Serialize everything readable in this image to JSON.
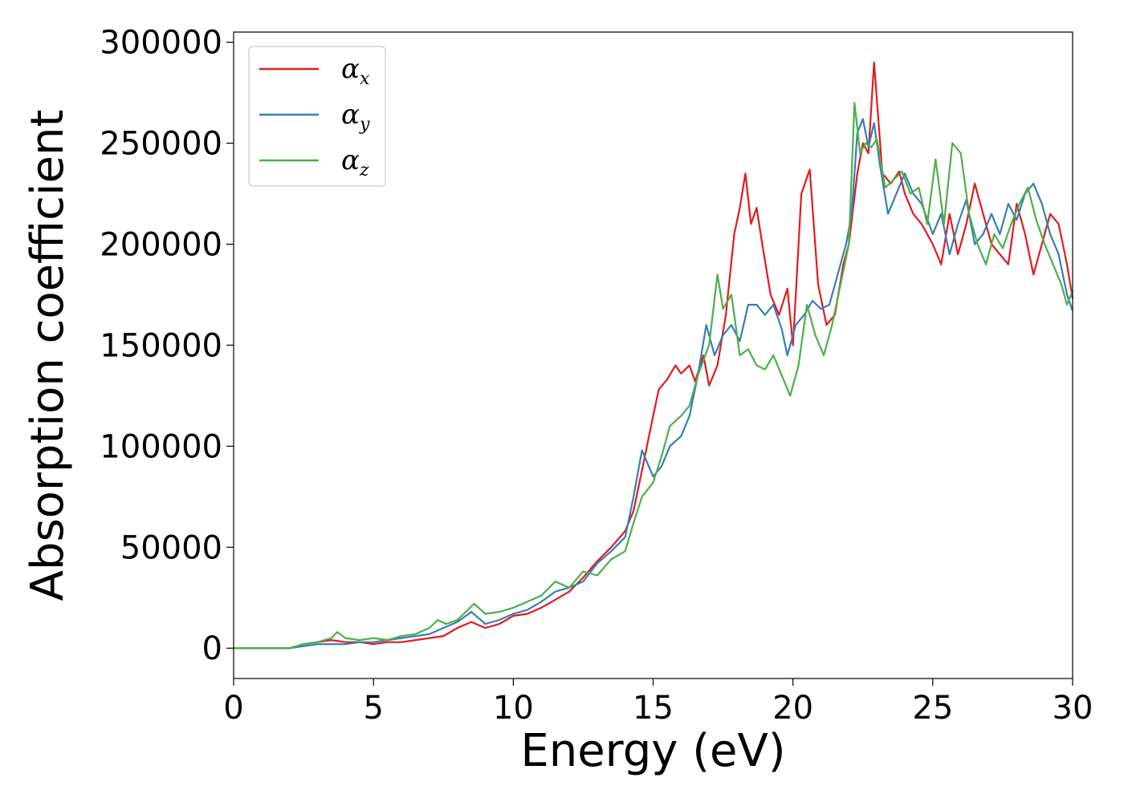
{
  "chart_data": {
    "type": "line",
    "title": "",
    "xlabel": "Energy (eV)",
    "ylabel": "Absorption coefficient",
    "xlim": [
      0,
      30
    ],
    "ylim": [
      -15000,
      305000
    ],
    "xticks": [
      0,
      5,
      10,
      15,
      20,
      25,
      30
    ],
    "xtick_labels": [
      "0",
      "5",
      "10",
      "15",
      "20",
      "25",
      "30"
    ],
    "yticks": [
      0,
      50000,
      100000,
      150000,
      200000,
      250000,
      300000
    ],
    "ytick_labels": [
      "0",
      "50000",
      "100000",
      "150000",
      "200000",
      "250000",
      "300000"
    ],
    "grid": false,
    "legend_position": "top-left",
    "series": [
      {
        "name": "α",
        "subscript": "x",
        "color": "#e41a1c",
        "x": [
          0,
          1,
          2,
          2.5,
          3,
          3.5,
          4,
          4.5,
          5,
          5.5,
          6,
          6.5,
          7,
          7.5,
          8,
          8.5,
          9,
          9.5,
          10,
          10.5,
          11,
          11.5,
          12,
          12.5,
          13,
          13.5,
          14,
          14.3,
          14.6,
          15,
          15.2,
          15.5,
          15.8,
          16,
          16.3,
          16.5,
          16.8,
          17,
          17.3,
          17.6,
          17.9,
          18.1,
          18.3,
          18.5,
          18.7,
          18.9,
          19.2,
          19.5,
          19.8,
          20,
          20.3,
          20.6,
          20.9,
          21.2,
          21.5,
          21.8,
          22,
          22.3,
          22.5,
          22.7,
          22.9,
          23.2,
          23.5,
          23.8,
          24,
          24.3,
          24.6,
          25,
          25.3,
          25.6,
          25.9,
          26.2,
          26.5,
          26.8,
          27.1,
          27.4,
          27.7,
          28,
          28.3,
          28.6,
          28.9,
          29.2,
          29.5,
          29.8,
          30
        ],
        "values": [
          0,
          0,
          0,
          2000,
          3000,
          4000,
          3000,
          3000,
          2000,
          3000,
          3000,
          4000,
          5000,
          6000,
          10000,
          13000,
          10000,
          12000,
          16000,
          17000,
          20000,
          24000,
          28000,
          35000,
          43000,
          50000,
          58000,
          68000,
          88000,
          115000,
          128000,
          133000,
          140000,
          136000,
          140000,
          132000,
          145000,
          130000,
          140000,
          165000,
          205000,
          218000,
          235000,
          210000,
          218000,
          200000,
          175000,
          165000,
          178000,
          150000,
          225000,
          237000,
          180000,
          160000,
          165000,
          190000,
          200000,
          235000,
          250000,
          245000,
          290000,
          235000,
          230000,
          236000,
          225000,
          215000,
          210000,
          200000,
          190000,
          215000,
          195000,
          210000,
          230000,
          215000,
          200000,
          195000,
          190000,
          220000,
          205000,
          185000,
          200000,
          215000,
          210000,
          190000,
          173000
        ]
      },
      {
        "name": "α",
        "subscript": "y",
        "color": "#377eb8",
        "x": [
          0,
          1,
          2,
          2.5,
          3,
          3.5,
          4,
          4.5,
          5,
          5.5,
          6,
          6.5,
          7,
          7.5,
          8,
          8.5,
          9,
          9.5,
          10,
          10.5,
          11,
          11.5,
          12,
          12.5,
          13,
          13.5,
          14,
          14.3,
          14.6,
          15,
          15.3,
          15.6,
          16,
          16.3,
          16.6,
          16.9,
          17.2,
          17.5,
          17.8,
          18.1,
          18.4,
          18.7,
          19,
          19.3,
          19.6,
          19.8,
          20.1,
          20.4,
          20.7,
          21,
          21.3,
          21.6,
          21.9,
          22.1,
          22.3,
          22.5,
          22.7,
          22.9,
          23.1,
          23.4,
          23.7,
          24,
          24.3,
          24.6,
          25,
          25.3,
          25.6,
          25.9,
          26.2,
          26.5,
          26.8,
          27.1,
          27.4,
          27.7,
          28,
          28.3,
          28.6,
          28.9,
          29.2,
          29.5,
          29.8,
          30
        ],
        "values": [
          0,
          0,
          0,
          1000,
          2000,
          2000,
          2000,
          3000,
          3000,
          4000,
          5000,
          6000,
          7000,
          10000,
          13000,
          18000,
          12000,
          14000,
          17000,
          19000,
          23000,
          28000,
          30000,
          33000,
          42000,
          48000,
          55000,
          75000,
          98000,
          85000,
          90000,
          100000,
          105000,
          115000,
          135000,
          160000,
          145000,
          155000,
          160000,
          152000,
          170000,
          170000,
          165000,
          170000,
          158000,
          145000,
          160000,
          165000,
          172000,
          168000,
          170000,
          185000,
          200000,
          215000,
          255000,
          262000,
          248000,
          260000,
          240000,
          215000,
          225000,
          235000,
          225000,
          220000,
          205000,
          215000,
          195000,
          210000,
          222000,
          200000,
          205000,
          215000,
          205000,
          220000,
          212000,
          225000,
          230000,
          220000,
          205000,
          195000,
          175000,
          167000
        ]
      },
      {
        "name": "α",
        "subscript": "z",
        "color": "#4daf4a",
        "x": [
          0,
          1,
          2,
          2.5,
          3,
          3.5,
          3.7,
          4,
          4.5,
          5,
          5.5,
          6,
          6.5,
          7,
          7.3,
          7.6,
          8,
          8.3,
          8.6,
          9,
          9.5,
          10,
          10.5,
          11,
          11.5,
          12,
          12.5,
          13,
          13.5,
          14,
          14.3,
          14.6,
          15,
          15.3,
          15.6,
          16,
          16.3,
          16.6,
          17,
          17.3,
          17.5,
          17.8,
          18.1,
          18.4,
          18.7,
          19,
          19.3,
          19.6,
          19.9,
          20.2,
          20.5,
          20.8,
          21.1,
          21.4,
          21.7,
          22,
          22.2,
          22.4,
          22.6,
          22.8,
          23,
          23.3,
          23.6,
          23.9,
          24.2,
          24.5,
          24.8,
          25.1,
          25.4,
          25.7,
          26,
          26.3,
          26.6,
          26.9,
          27.2,
          27.5,
          27.8,
          28.1,
          28.4,
          28.7,
          29,
          29.3,
          29.6,
          29.8,
          30
        ],
        "values": [
          0,
          0,
          0,
          2000,
          3000,
          5000,
          8000,
          5000,
          4000,
          5000,
          4000,
          6000,
          7000,
          10000,
          14000,
          12000,
          14000,
          18000,
          22000,
          17000,
          18000,
          20000,
          23000,
          26000,
          33000,
          30000,
          38000,
          36000,
          44000,
          48000,
          62000,
          75000,
          82000,
          95000,
          110000,
          115000,
          120000,
          135000,
          150000,
          185000,
          168000,
          175000,
          145000,
          148000,
          140000,
          138000,
          145000,
          135000,
          125000,
          140000,
          170000,
          155000,
          145000,
          160000,
          180000,
          200000,
          270000,
          245000,
          250000,
          248000,
          252000,
          228000,
          232000,
          236000,
          225000,
          228000,
          210000,
          242000,
          210000,
          250000,
          245000,
          215000,
          200000,
          190000,
          205000,
          198000,
          210000,
          220000,
          228000,
          212000,
          200000,
          190000,
          180000,
          170000,
          177000
        ]
      }
    ]
  }
}
